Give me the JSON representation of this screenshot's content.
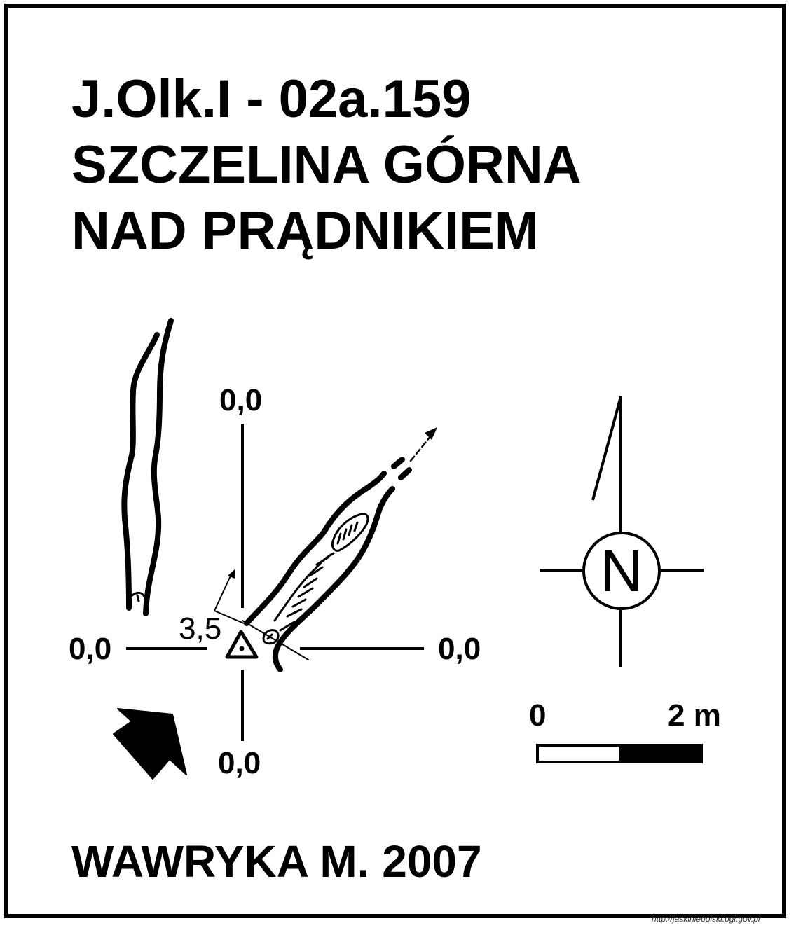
{
  "title": {
    "line1": "J.Olk.I - 02a.159",
    "line2": "SZCZELINA GÓRNA",
    "line3": "NAD PRĄDNIKIEM"
  },
  "survey_labels": {
    "north": "0,0",
    "west": "0,0",
    "east": "0,0",
    "south": "0,0",
    "elevation": "3,5"
  },
  "compass": {
    "letter": "N"
  },
  "scale_bar": {
    "start_label": "0",
    "end_label": "2 m"
  },
  "author": "WAWRYKA M. 2007",
  "credit": "http://jaskiniepolski.pgi.gov.pl",
  "colors": {
    "ink": "#000000",
    "paper": "#ffffff"
  }
}
